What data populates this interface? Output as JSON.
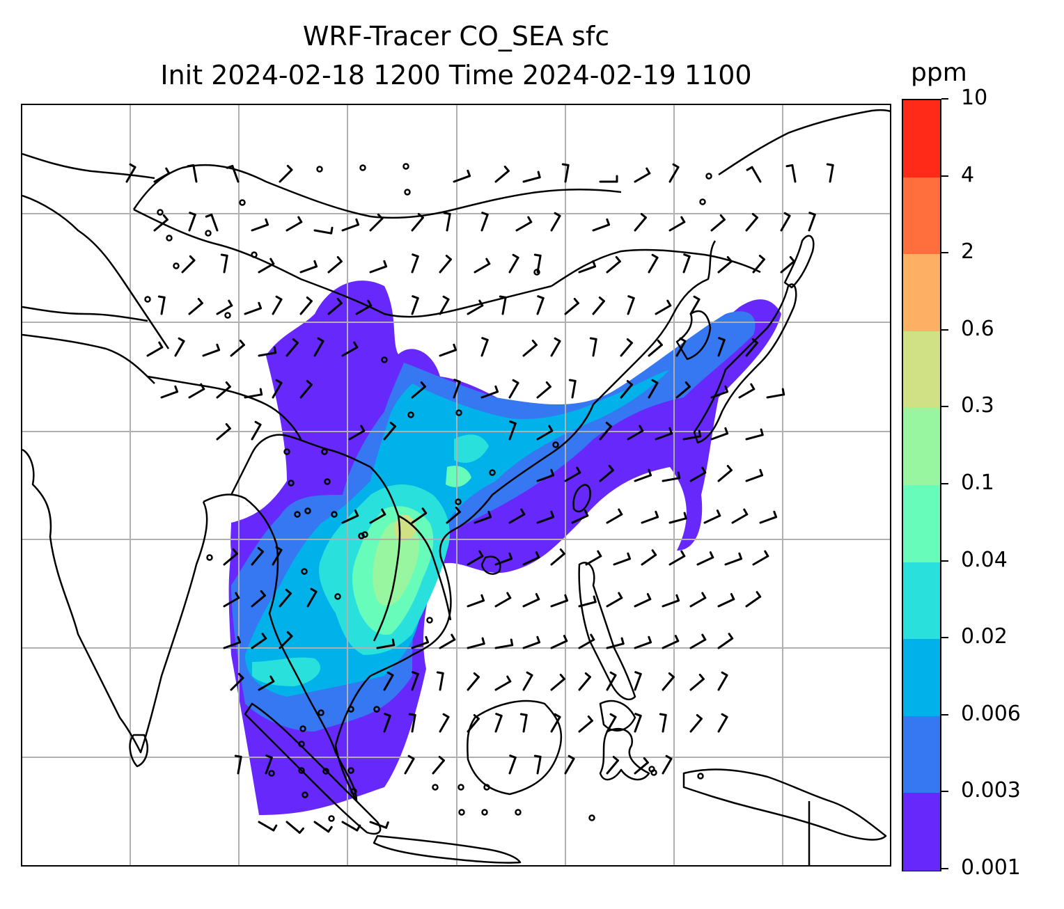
{
  "title": {
    "line1": "WRF-Tracer CO_SEA sfc",
    "line2": "Init 2024-02-18 1200 Time 2024-02-19 1100"
  },
  "colorbar": {
    "unit": "ppm",
    "ticks": [
      "10",
      "4",
      "2",
      "0.6",
      "0.3",
      "0.1",
      "0.04",
      "0.02",
      "0.006",
      "0.003",
      "0.001"
    ],
    "colors": [
      "#ff2b18",
      "#ff6e3c",
      "#fdaf63",
      "#cfe184",
      "#97f69f",
      "#68fcbb",
      "#2ae0dc",
      "#00b1ea",
      "#3578f2",
      "#6628fb"
    ]
  },
  "map": {
    "gridlines": true,
    "coastline_color": "#000000",
    "grid_color": "#b0b0b0"
  }
}
